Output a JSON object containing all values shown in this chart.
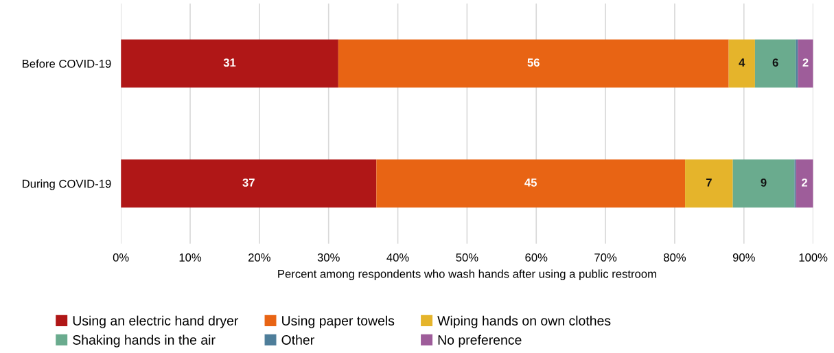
{
  "chart_data": {
    "type": "bar",
    "orientation": "horizontal",
    "stacked": true,
    "categories": [
      "Before COVID-19",
      "During COVID-19"
    ],
    "xlabel": "Percent among respondents who wash hands after using a public restroom",
    "xlim": [
      0,
      100
    ],
    "xticks": [
      {
        "value": 0,
        "label": "0%"
      },
      {
        "value": 10,
        "label": "10%"
      },
      {
        "value": 20,
        "label": "20%"
      },
      {
        "value": 30,
        "label": "30%"
      },
      {
        "value": 40,
        "label": "40%"
      },
      {
        "value": 50,
        "label": "50%"
      },
      {
        "value": 60,
        "label": "60%"
      },
      {
        "value": 70,
        "label": "70%"
      },
      {
        "value": 80,
        "label": "80%"
      },
      {
        "value": 90,
        "label": "90%"
      },
      {
        "value": 100,
        "label": "100%"
      }
    ],
    "grid": "x",
    "legend": "bottom",
    "series": [
      {
        "name": "Using an electric hand dryer",
        "color": "#b01717",
        "values": [
          31.4,
          36.9
        ],
        "value_labels": [
          "31",
          "37"
        ]
      },
      {
        "name": "Using paper towels",
        "color": "#e86414",
        "values": [
          56.4,
          44.6
        ],
        "value_labels": [
          "56",
          "45"
        ]
      },
      {
        "name": "Wiping hands on own clothes",
        "color": "#e5b42b",
        "values": [
          3.8,
          6.9
        ],
        "value_labels": [
          "4",
          "7"
        ]
      },
      {
        "name": "Shaking hands in the air",
        "color": "#6aab8e",
        "values": [
          5.9,
          8.9
        ],
        "value_labels": [
          "6",
          "9"
        ]
      },
      {
        "name": "Other",
        "color": "#4e7e9a",
        "values": [
          0.3,
          0.2
        ],
        "value_labels": [
          null,
          null
        ]
      },
      {
        "name": "No preference",
        "color": "#9e5d9a",
        "values": [
          2.2,
          2.5
        ],
        "value_labels": [
          "2",
          "2"
        ]
      }
    ]
  }
}
